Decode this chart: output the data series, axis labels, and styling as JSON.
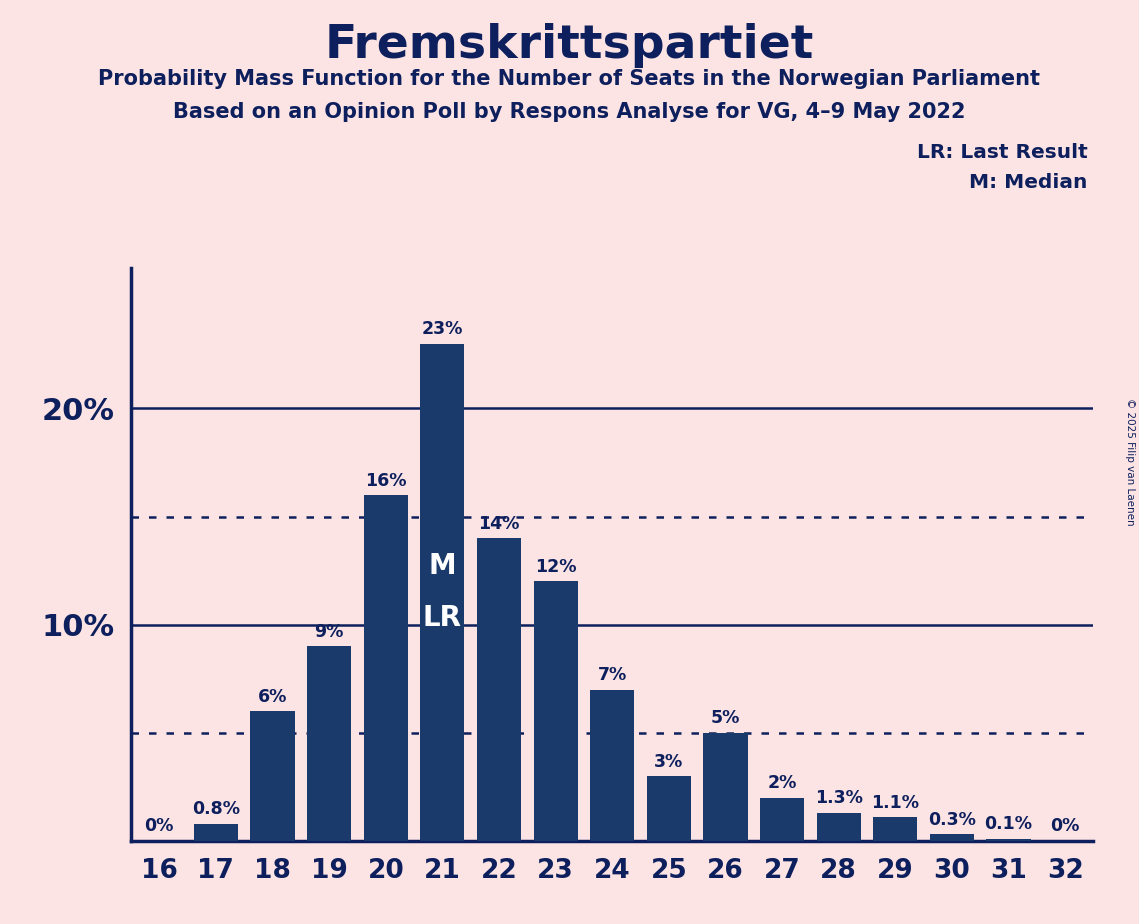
{
  "title": "Fremskrittspartiet",
  "subtitle1": "Probability Mass Function for the Number of Seats in the Norwegian Parliament",
  "subtitle2": "Based on an Opinion Poll by Respons Analyse for VG, 4–9 May 2022",
  "copyright": "© 2025 Filip van Laenen",
  "legend_lr": "LR: Last Result",
  "legend_m": "M: Median",
  "seats": [
    16,
    17,
    18,
    19,
    20,
    21,
    22,
    23,
    24,
    25,
    26,
    27,
    28,
    29,
    30,
    31,
    32
  ],
  "values": [
    0.0,
    0.8,
    6.0,
    9.0,
    16.0,
    23.0,
    14.0,
    12.0,
    7.0,
    3.0,
    5.0,
    2.0,
    1.3,
    1.1,
    0.3,
    0.1,
    0.0
  ],
  "labels": [
    "0%",
    "0.8%",
    "6%",
    "9%",
    "16%",
    "23%",
    "14%",
    "12%",
    "7%",
    "3%",
    "5%",
    "2%",
    "1.3%",
    "1.1%",
    "0.3%",
    "0.1%",
    "0%"
  ],
  "bar_color": "#1a3a6b",
  "background_color": "#fce4e4",
  "text_color": "#0d1f5c",
  "median_seat": 21,
  "lr_seat": 21,
  "dotted_lines": [
    5.0,
    15.0
  ],
  "solid_lines": [
    10.0,
    20.0
  ],
  "ylim": [
    0,
    26.5
  ],
  "bar_width": 0.78
}
